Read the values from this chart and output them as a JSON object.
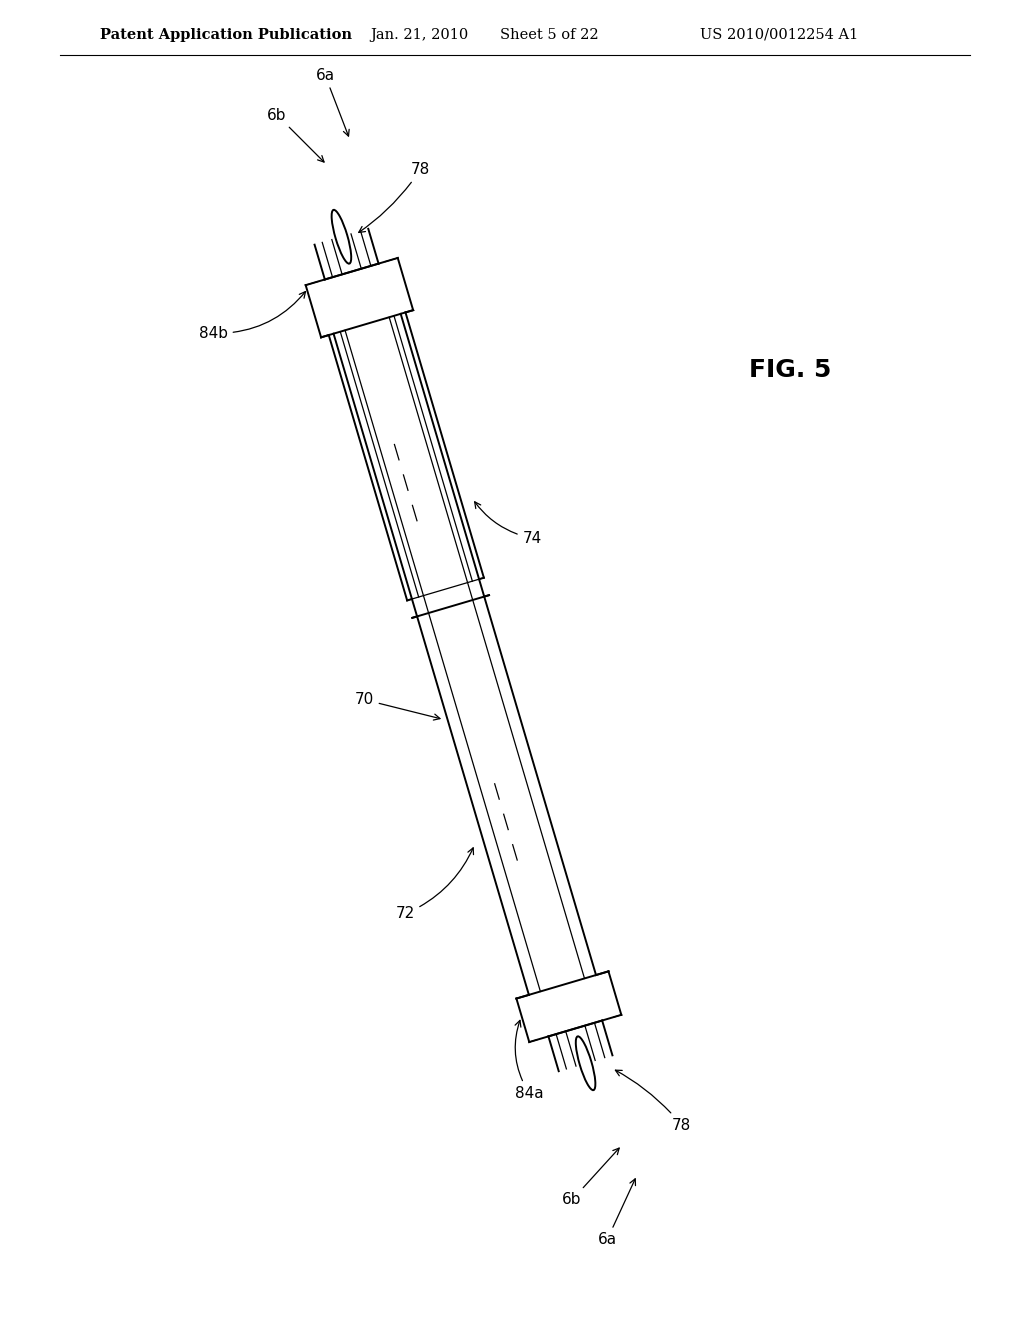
{
  "bg_color": "#ffffff",
  "header_text": "Patent Application Publication",
  "header_date": "Jan. 21, 2010",
  "header_sheet": "Sheet 5 of 22",
  "header_patent": "US 2010/0012254 A1",
  "fig_label": "FIG. 5",
  "label_fontsize": 11,
  "header_fontsize": 10.5,
  "fig_label_fontsize": 18
}
